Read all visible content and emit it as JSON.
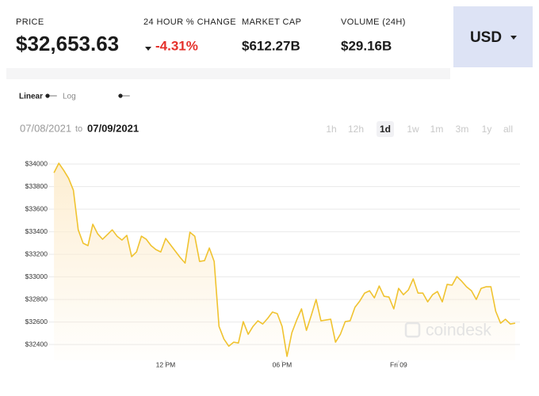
{
  "header": {
    "stats": [
      {
        "label": "PRICE",
        "value": "$32,653.63"
      },
      {
        "label": "24 HOUR % CHANGE",
        "value": "-4.31%",
        "color": "#e5312b"
      },
      {
        "label": "MARKET CAP",
        "value": "$612.27B"
      },
      {
        "label": "VOLUME (24H)",
        "value": "$29.16B"
      }
    ],
    "currency": "USD"
  },
  "scale_options": [
    "Linear",
    "Log"
  ],
  "date_range": {
    "from": "07/08/2021",
    "separator": "to",
    "to": "07/09/2021"
  },
  "ranges": [
    "1h",
    "12h",
    "1d",
    "1w",
    "1m",
    "3m",
    "1y",
    "all"
  ],
  "selected_range": "1d",
  "watermark": "coindesk",
  "chart_data": {
    "type": "line",
    "color": "#f0c330",
    "fill": "#fdeed2",
    "grid": true,
    "x": [
      6.25,
      6.5,
      6.75,
      7,
      7.25,
      7.5,
      7.75,
      8,
      8.25,
      8.5,
      8.75,
      9,
      9.25,
      9.5,
      9.75,
      10,
      10.25,
      10.5,
      10.75,
      11,
      11.25,
      11.5,
      11.75,
      12,
      12.25,
      12.5,
      12.75,
      13,
      13.25,
      13.5,
      13.75,
      14,
      14.25,
      14.5,
      14.75,
      15,
      15.25,
      15.5,
      15.75,
      16,
      16.25,
      16.5,
      16.75,
      17,
      17.25,
      17.5,
      17.75,
      18,
      18.25,
      18.5,
      18.75,
      19,
      19.25,
      19.5,
      19.75,
      20,
      20.25,
      20.5,
      20.75,
      21,
      21.25,
      21.5,
      21.75,
      22,
      22.25,
      22.5,
      22.75,
      23,
      23.25,
      23.5,
      23.75,
      24,
      24.25,
      24.5,
      24.75,
      25,
      25.25,
      25.5,
      25.75,
      26,
      26.25,
      26.5,
      26.75,
      27,
      27.25,
      27.5,
      27.75,
      28,
      28.25,
      28.5,
      28.75,
      29,
      29.25,
      29.5,
      29.75,
      30
    ],
    "values": [
      33923,
      34007,
      33944,
      33874,
      33768,
      33417,
      33298,
      33277,
      33467,
      33382,
      33333,
      33375,
      33417,
      33361,
      33326,
      33368,
      33179,
      33221,
      33361,
      33333,
      33277,
      33242,
      33221,
      33340,
      33284,
      33228,
      33172,
      33123,
      33396,
      33361,
      33137,
      33144,
      33256,
      33137,
      32561,
      32449,
      32386,
      32421,
      32414,
      32603,
      32491,
      32561,
      32610,
      32582,
      32631,
      32688,
      32674,
      32561,
      32295,
      32505,
      32617,
      32716,
      32526,
      32659,
      32800,
      32610,
      32617,
      32624,
      32421,
      32491,
      32603,
      32610,
      32730,
      32786,
      32856,
      32877,
      32814,
      32919,
      32828,
      32821,
      32716,
      32898,
      32842,
      32884,
      32982,
      32856,
      32856,
      32779,
      32842,
      32870,
      32779,
      32933,
      32926,
      33003,
      32961,
      32912,
      32877,
      32800,
      32898,
      32912,
      32912,
      32695,
      32589,
      32624,
      32582,
      32589
    ],
    "xlim": [
      6,
      30.25
    ],
    "xticks": [
      {
        "value": 12,
        "label": "12 PM"
      },
      {
        "value": 18,
        "label": "06 PM"
      },
      {
        "value": 24,
        "label": "Fri 09"
      }
    ],
    "ylim": [
      32260,
      34050
    ],
    "yticks": [
      {
        "value": 32400,
        "label": "$32400"
      },
      {
        "value": 32600,
        "label": "$32600"
      },
      {
        "value": 32800,
        "label": "$32800"
      },
      {
        "value": 33000,
        "label": "$33000"
      },
      {
        "value": 33200,
        "label": "$33200"
      },
      {
        "value": 33400,
        "label": "$33400"
      },
      {
        "value": 33600,
        "label": "$33600"
      },
      {
        "value": 33800,
        "label": "$33800"
      },
      {
        "value": 34000,
        "label": "$34000"
      }
    ]
  }
}
